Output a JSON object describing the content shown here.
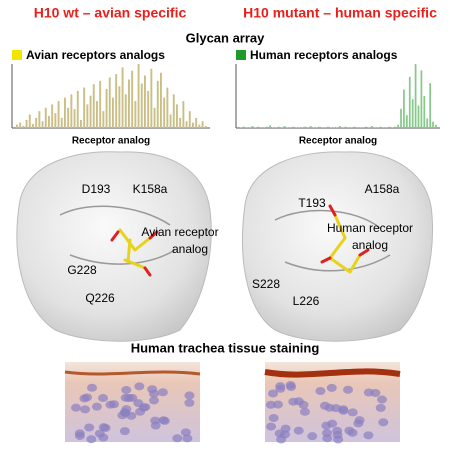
{
  "header": {
    "left_title": "H10 wt – avian specific",
    "right_title": "H10 mutant – human specific"
  },
  "glycan_array": {
    "title": "Glycan array",
    "panels": [
      {
        "legend": "Avian receptors analogs",
        "legend_color": "#f2e500",
        "bar_color": "#cbbf86",
        "x_label": "Receptor analog",
        "values": [
          5,
          8,
          3,
          12,
          20,
          6,
          15,
          25,
          10,
          30,
          18,
          35,
          22,
          40,
          15,
          45,
          30,
          50,
          28,
          55,
          12,
          60,
          35,
          48,
          65,
          40,
          70,
          25,
          58,
          75,
          45,
          80,
          62,
          90,
          50,
          72,
          85,
          40,
          95,
          66,
          78,
          55,
          88,
          30,
          70,
          82,
          45,
          60,
          20,
          50,
          35,
          15,
          40,
          10,
          25,
          8,
          15,
          5,
          10,
          3
        ]
      },
      {
        "legend": "Human receptors analogs",
        "legend_color": "#1f9a2a",
        "bar_color": "#86c98a",
        "x_label": "Receptor analog",
        "values": [
          1,
          2,
          1,
          1,
          3,
          1,
          2,
          1,
          1,
          2,
          4,
          1,
          1,
          2,
          1,
          3,
          1,
          1,
          2,
          1,
          1,
          1,
          2,
          1,
          3,
          1,
          1,
          2,
          1,
          1,
          2,
          1,
          1,
          1,
          3,
          1,
          2,
          1,
          1,
          2,
          1,
          1,
          1,
          2,
          1,
          3,
          1,
          1,
          2,
          1,
          1,
          2,
          1,
          2,
          5,
          30,
          60,
          20,
          80,
          45,
          100,
          35,
          90,
          50,
          15,
          70,
          10,
          5
        ]
      }
    ]
  },
  "structures": [
    {
      "labels": [
        "D193",
        "K158a",
        "Avian receptor",
        "analog",
        "G228",
        "Q226"
      ]
    },
    {
      "labels": [
        "T193",
        "A158a",
        "Human receptor",
        "analog",
        "S228",
        "L226"
      ]
    }
  ],
  "tissue": {
    "title": "Human trachea tissue staining"
  }
}
